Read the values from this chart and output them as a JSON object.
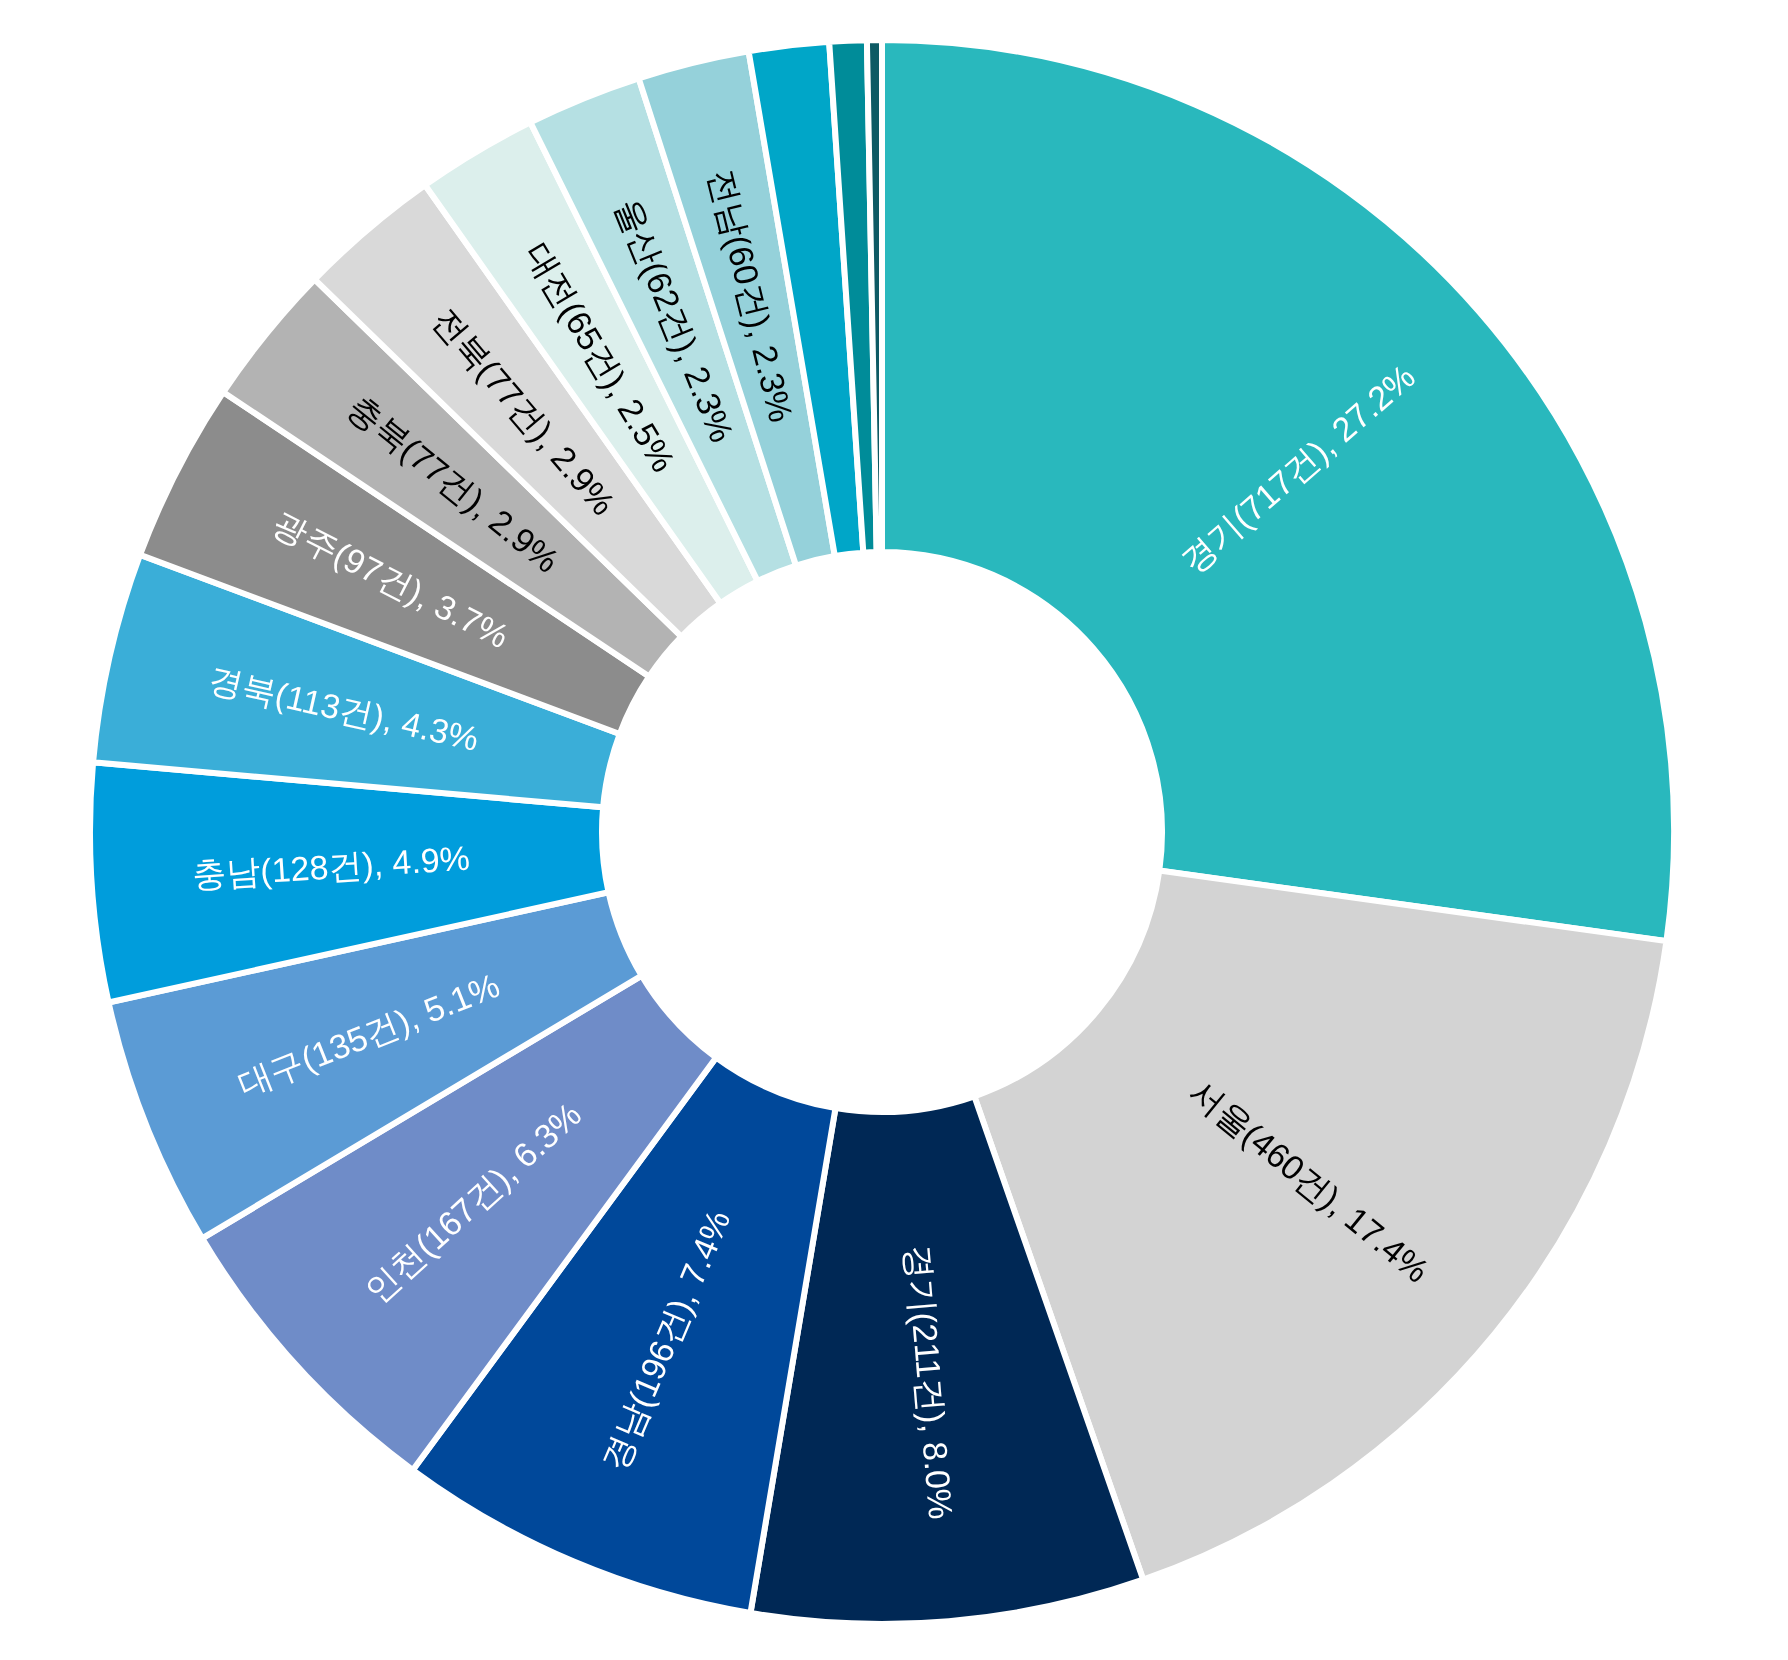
{
  "chart_data": {
    "type": "donut",
    "categories": [
      "경기(717건), 27.2%",
      "서울(460건), 17.4%",
      "경기(211건), 8.0%",
      "경남(196건), 7.4%",
      "인천(167건), 6.3%",
      "대구(135건), 5.1%",
      "충남(128건), 4.9%",
      "경북(113건), 4.3%",
      "광주(97건), 3.7%",
      "충북(77건), 2.9%",
      "전북(77건), 2.9%",
      "대전(65건), 2.5%",
      "울산(62건), 2.3%",
      "전남(60건), 2.3%",
      null,
      null,
      null
    ],
    "values": [
      717,
      460,
      211,
      196,
      167,
      135,
      128,
      113,
      97,
      77,
      77,
      65,
      62,
      60,
      43,
      20,
      8
    ],
    "colors": [
      "#29b8bd",
      "#d3d3d3",
      "#002855",
      "#00489a",
      "#6f8cc8",
      "#5b9bd5",
      "#009ddc",
      "#3aaed8",
      "#8c8c8c",
      "#b3b3b3",
      "#d9d9d9",
      "#dcefec",
      "#b5e0e3",
      "#95d1da",
      "#00a6c8",
      "#008c99",
      "#0d5a64"
    ]
  }
}
